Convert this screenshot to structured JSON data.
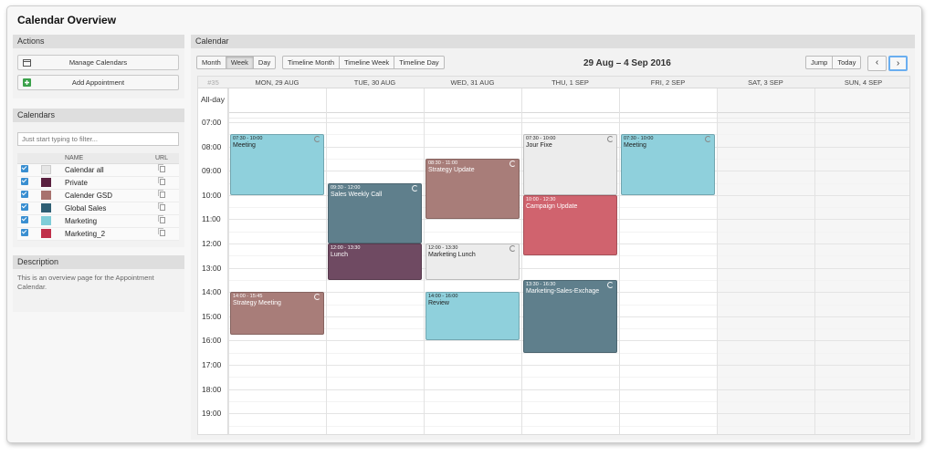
{
  "header": {
    "title": "Calendar Overview"
  },
  "sidebar": {
    "actions": {
      "title": "Actions",
      "manage_label": "Manage Calendars",
      "add_label": "Add Appointment"
    },
    "calendars": {
      "title": "Calendars",
      "filter_placeholder": "Just start typing to filter...",
      "col_name": "NAME",
      "col_url": "URL",
      "items": [
        {
          "name": "Calendar all",
          "color": "#e6e6e6"
        },
        {
          "name": "Private",
          "color": "#5a2140"
        },
        {
          "name": "Calender GSD",
          "color": "#a8726e"
        },
        {
          "name": "Global Sales",
          "color": "#2f5f74"
        },
        {
          "name": "Marketing",
          "color": "#7fcdd8"
        },
        {
          "name": "Marketing_2",
          "color": "#c0304a"
        }
      ]
    },
    "description": {
      "title": "Description",
      "text": "This is an overview page for the Appointment Calendar."
    }
  },
  "main": {
    "title": "Calendar",
    "views": [
      "Month",
      "Week",
      "Day"
    ],
    "timeline_views": [
      "Timeline Month",
      "Timeline Week",
      "Timeline Day"
    ],
    "range": "29 Aug – 4 Sep 2016",
    "jump_label": "Jump",
    "today_label": "Today",
    "prev_icon": "‹",
    "next_icon": "›",
    "week_number": "#35",
    "allday_label": "All-day",
    "days": [
      "MON, 29 AUG",
      "TUE, 30 AUG",
      "WED, 31 AUG",
      "THU, 1 SEP",
      "FRI, 2 SEP",
      "SAT, 3 SEP",
      "SUN, 4 SEP"
    ],
    "hours": [
      "07:00",
      "08:00",
      "09:00",
      "10:00",
      "11:00",
      "12:00",
      "13:00",
      "14:00",
      "15:00",
      "16:00",
      "17:00",
      "18:00",
      "19:00"
    ]
  },
  "events": [
    {
      "day": 0,
      "time": "07:30 - 10:00",
      "title": "Meeting",
      "color": "#8fd0dc",
      "style": "light",
      "recurring": true
    },
    {
      "day": 0,
      "time": "14:00 - 15:45",
      "title": "Strategy Meeting",
      "color": "#a87d79",
      "style": "dark",
      "recurring": true
    },
    {
      "day": 1,
      "time": "09:30 - 12:00",
      "title": "Sales Weekly Call",
      "color": "#5f7f8c",
      "style": "dark",
      "recurring": true
    },
    {
      "day": 1,
      "time": "12:00 - 13:30",
      "title": "Lunch",
      "color": "#6f4a62",
      "style": "dark",
      "recurring": false
    },
    {
      "day": 2,
      "time": "08:30 - 11:00",
      "title": "Strategy Update",
      "color": "#a87d79",
      "style": "dark",
      "recurring": true
    },
    {
      "day": 2,
      "time": "12:00 - 13:30",
      "title": "Marketing Lunch",
      "color": "#ececec",
      "style": "light",
      "recurring": true
    },
    {
      "day": 2,
      "time": "14:00 - 16:00",
      "title": "Review",
      "color": "#8fd0dc",
      "style": "light",
      "recurring": false
    },
    {
      "day": 3,
      "time": "07:30 - 10:00",
      "title": "Jour Fixe",
      "color": "#ececec",
      "style": "light",
      "recurring": true
    },
    {
      "day": 3,
      "time": "10:00 - 12:30",
      "title": "Campaign Update",
      "color": "#d0636e",
      "style": "dark",
      "recurring": false
    },
    {
      "day": 3,
      "time": "13:30 - 16:30",
      "title": "Marketing-Sales-Exchage",
      "color": "#5f7f8c",
      "style": "dark",
      "recurring": true
    },
    {
      "day": 4,
      "time": "07:30 - 10:00",
      "title": "Meeting",
      "color": "#8fd0dc",
      "style": "light",
      "recurring": true
    }
  ]
}
